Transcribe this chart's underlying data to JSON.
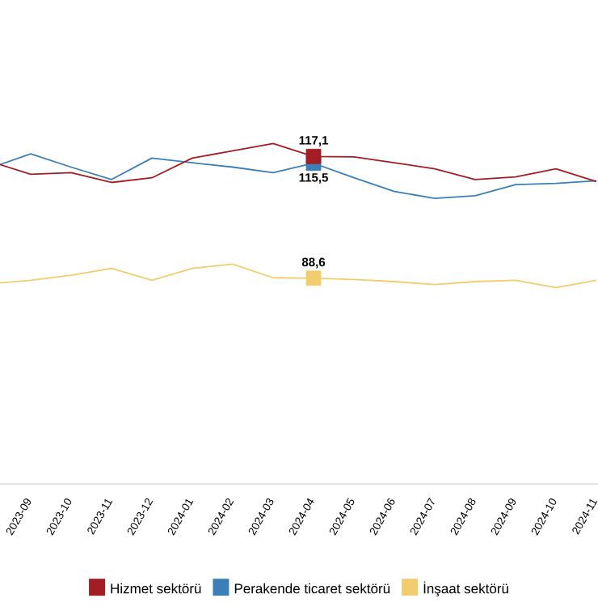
{
  "chart_data": {
    "type": "line",
    "categories": [
      null,
      "2023-09",
      "2023-10",
      "2023-11",
      "2023-12",
      "2024-01",
      "2024-02",
      "2024-03",
      "2024-04",
      "2024-05",
      "2024-06",
      "2024-07",
      "2024-08",
      "2024-09",
      "2024-10",
      "2024-11"
    ],
    "series": [
      {
        "name": "Hizmet sektörü",
        "color": "#a31d24",
        "values": [
          115.9,
          112.9,
          113.3,
          111.0,
          112.1,
          116.7,
          118.4,
          120.1,
          117.1,
          117.0,
          115.6,
          114.2,
          111.7,
          112.3,
          114.2,
          111.2
        ],
        "value_labels": [
          null,
          null,
          null,
          null,
          null,
          null,
          null,
          null,
          "117,1",
          null,
          null,
          null,
          null,
          null,
          null,
          null
        ]
      },
      {
        "name": "Perakende ticaret sektörü",
        "color": "#3a7fb8",
        "values": [
          114.4,
          117.7,
          114.6,
          111.7,
          116.7,
          115.6,
          114.6,
          113.3,
          115.5,
          112.1,
          108.9,
          107.3,
          107.9,
          110.5,
          110.8,
          111.4
        ],
        "value_labels": [
          null,
          null,
          null,
          null,
          null,
          null,
          null,
          null,
          "115,5",
          null,
          null,
          null,
          null,
          null,
          null,
          null
        ]
      },
      {
        "name": "İnşaat sektörü",
        "color": "#f2cd6e",
        "values": [
          87.3,
          88.1,
          89.3,
          90.9,
          88.1,
          90.9,
          91.9,
          88.7,
          88.6,
          88.3,
          87.8,
          87.1,
          87.8,
          88.1,
          86.4,
          88.1
        ],
        "value_labels": [
          null,
          null,
          null,
          null,
          null,
          null,
          null,
          null,
          "88,6",
          null,
          null,
          null,
          null,
          null,
          null,
          null
        ]
      }
    ],
    "tick_labels": "x",
    "legend": "bottom"
  }
}
